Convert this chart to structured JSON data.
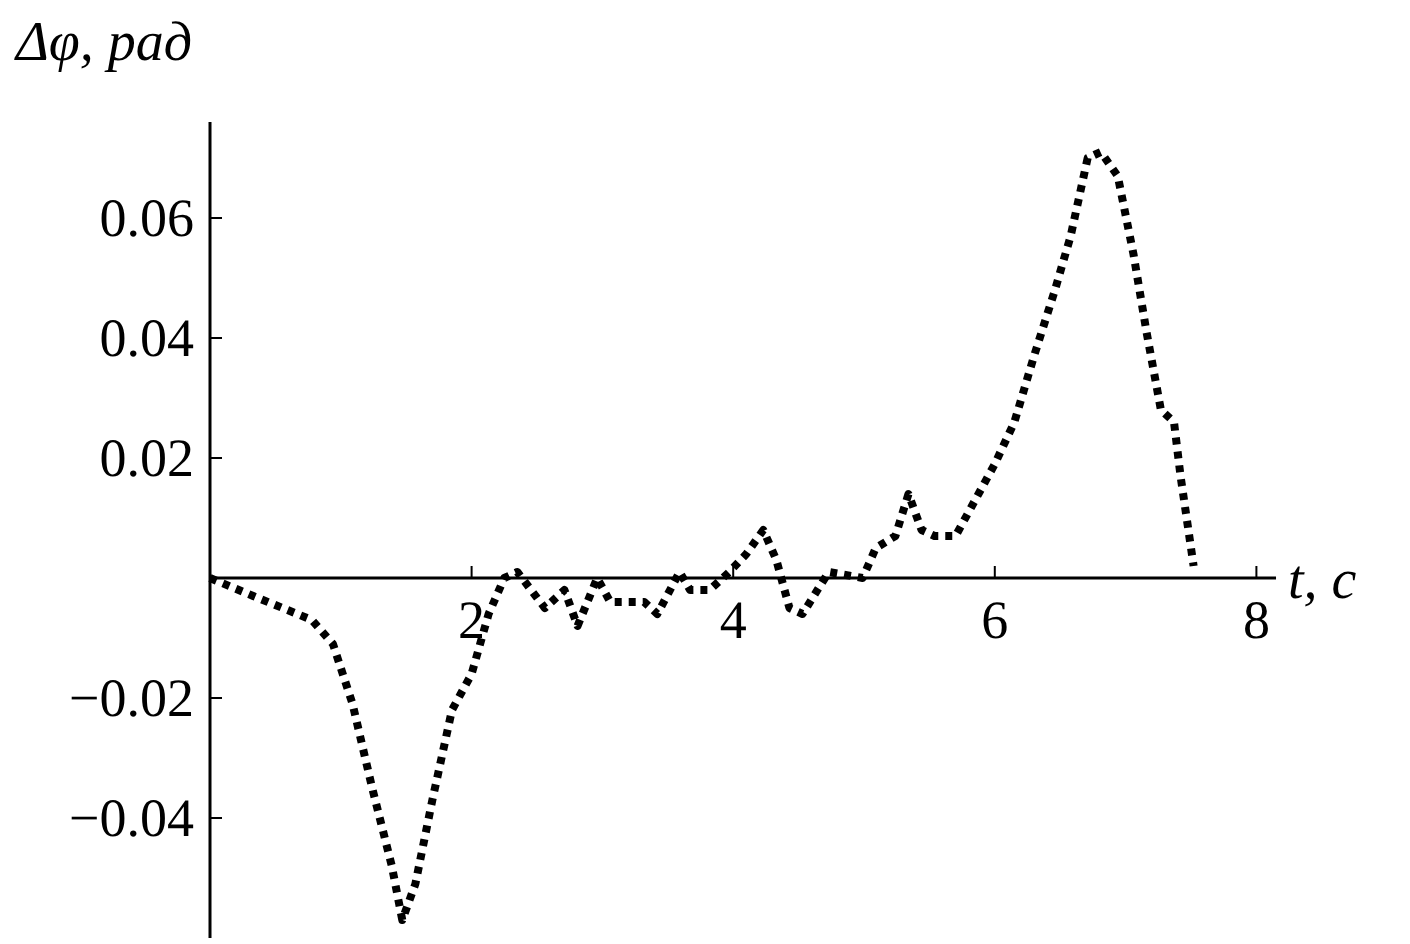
{
  "chart_data": {
    "type": "line",
    "xlabel": "t, с",
    "ylabel": "Δφ, рад",
    "xlim": [
      0,
      8.15
    ],
    "ylim": [
      -0.06,
      0.076
    ],
    "xticks": [
      2,
      4,
      6,
      8
    ],
    "yticks": [
      -0.04,
      -0.02,
      0.02,
      0.04,
      0.06
    ],
    "grid": false,
    "line_style": "dotted",
    "series": [
      {
        "color": "#000000",
        "x": [
          0,
          0.33,
          0.78,
          0.94,
          1.09,
          1.24,
          1.39,
          1.47,
          1.57,
          1.7,
          1.85,
          2.0,
          2.13,
          2.25,
          2.35,
          2.56,
          2.71,
          2.81,
          2.96,
          3.06,
          3.32,
          3.42,
          3.59,
          3.67,
          3.82,
          3.97,
          4.1,
          4.23,
          4.33,
          4.43,
          4.53,
          4.73,
          4.99,
          5.09,
          5.24,
          5.34,
          5.44,
          5.54,
          5.7,
          5.85,
          6.0,
          6.15,
          6.3,
          6.46,
          6.58,
          6.71,
          6.81,
          6.94,
          7.06,
          7.16,
          7.27,
          7.37,
          7.42,
          7.52
        ],
        "values": [
          0,
          -0.003,
          -0.007,
          -0.011,
          -0.021,
          -0.035,
          -0.048,
          -0.057,
          -0.051,
          -0.037,
          -0.022,
          -0.016,
          -0.006,
          0,
          0.001,
          -0.005,
          -0.002,
          -0.008,
          0,
          -0.004,
          -0.004,
          -0.006,
          0.001,
          -0.002,
          -0.002,
          0.001,
          0.004,
          0.008,
          0.003,
          -0.005,
          -0.006,
          0.001,
          0,
          0.005,
          0.007,
          0.014,
          0.008,
          0.007,
          0.007,
          0.013,
          0.019,
          0.026,
          0.037,
          0.048,
          0.057,
          0.07,
          0.071,
          0.067,
          0.054,
          0.041,
          0.028,
          0.026,
          0.017,
          0.002
        ]
      }
    ]
  }
}
